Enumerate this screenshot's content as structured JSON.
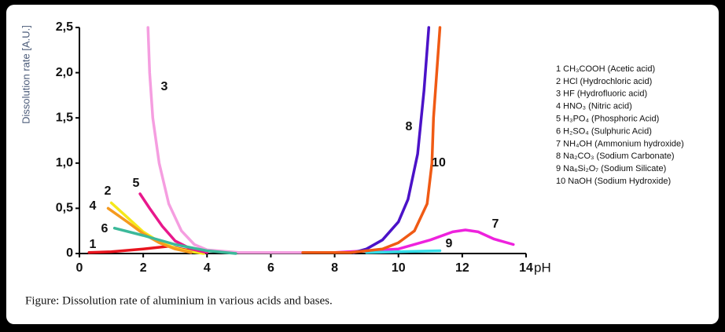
{
  "chart_data": {
    "type": "line",
    "caption": "Figure: Dissolution rate of aluminium in various acids and bases.",
    "ylabel": "Dissolution rate [A.U.]",
    "xlabel": "pH",
    "xlim": [
      0,
      14
    ],
    "xticks": [
      0,
      2,
      4,
      6,
      8,
      10,
      12,
      14
    ],
    "ylim": [
      0,
      2.5
    ],
    "yticks": [
      0,
      {
        "value": 0.5,
        "label": "0,5"
      },
      {
        "value": 1.0,
        "label": "1,0"
      },
      {
        "value": 1.5,
        "label": "1,5"
      },
      {
        "value": 2.0,
        "label": "2,0"
      },
      {
        "value": 2.5,
        "label": "2,5"
      }
    ],
    "series": [
      {
        "label": "1",
        "name": "1 CH₃COOH (Acetic acid)",
        "color": "#e8141e",
        "x": [
          0.3,
          1,
          2,
          2.8,
          3.2,
          3.8
        ],
        "values": [
          0.01,
          0.02,
          0.05,
          0.08,
          0.05,
          0.01
        ]
      },
      {
        "label": "2",
        "name": "2 HCl (Hydrochloric acid)",
        "color": "#f5e81a",
        "x": [
          1,
          1.5,
          2,
          2.5,
          3,
          3.5,
          3.9
        ],
        "values": [
          0.56,
          0.4,
          0.24,
          0.13,
          0.06,
          0.02,
          0
        ]
      },
      {
        "label": "3",
        "name": "3 HF (Hydrofluoric acid)",
        "color": "#f59ee0",
        "x": [
          2.15,
          2.2,
          2.3,
          2.5,
          2.8,
          3.2,
          3.6,
          4,
          5,
          7
        ],
        "values": [
          2.5,
          2.0,
          1.5,
          1.0,
          0.55,
          0.25,
          0.1,
          0.04,
          0.01,
          0.01
        ]
      },
      {
        "label": "4",
        "name": "4 HNO₃ (Nitric acid)",
        "color": "#f59a1e",
        "x": [
          0.9,
          1.5,
          2,
          2.5,
          3,
          3.5
        ],
        "values": [
          0.5,
          0.35,
          0.22,
          0.12,
          0.05,
          0.01
        ]
      },
      {
        "label": "5",
        "name": "5 H₃PO₄ (Phosphoric Acid)",
        "color": "#e8188c",
        "x": [
          1.9,
          2.2,
          2.6,
          3,
          3.5,
          4
        ],
        "values": [
          0.66,
          0.5,
          0.3,
          0.14,
          0.05,
          0.01
        ]
      },
      {
        "label": "6",
        "name": "6 H₂SO₄ (Sulphuric Acid)",
        "color": "#3cb99a",
        "x": [
          1.1,
          2,
          3,
          4,
          4.9
        ],
        "values": [
          0.28,
          0.2,
          0.1,
          0.03,
          0
        ]
      },
      {
        "label": "7",
        "name": "7 NH₄OH (Ammonium hydroxide)",
        "color": "#ee22dd",
        "x": [
          8,
          10,
          11,
          11.7,
          12.1,
          12.5,
          13,
          13.6
        ],
        "values": [
          0.01,
          0.05,
          0.15,
          0.24,
          0.26,
          0.24,
          0.16,
          0.1
        ]
      },
      {
        "label": "8",
        "name": "8 Na₂CO₃ (Sodium Carbonate)",
        "color": "#4b12c8",
        "x": [
          8.6,
          9,
          9.5,
          10,
          10.3,
          10.6,
          10.8,
          10.95
        ],
        "values": [
          0.01,
          0.05,
          0.15,
          0.35,
          0.6,
          1.1,
          1.8,
          2.5
        ]
      },
      {
        "label": "9",
        "name": "9 Na₆Si₂O₇ (Sodium Silicate)",
        "color": "#33dde8",
        "x": [
          9,
          11.3
        ],
        "values": [
          0.01,
          0.03
        ]
      },
      {
        "label": "10",
        "name": "10 NaOH (Sodium Hydroxide)",
        "color": "#f05a14",
        "x": [
          7,
          8.5,
          9.5,
          10,
          10.5,
          10.9,
          11.05,
          11.1,
          11.2,
          11.3
        ],
        "values": [
          0.01,
          0.01,
          0.05,
          0.12,
          0.25,
          0.55,
          1.0,
          1.5,
          2.0,
          2.5
        ]
      }
    ]
  }
}
